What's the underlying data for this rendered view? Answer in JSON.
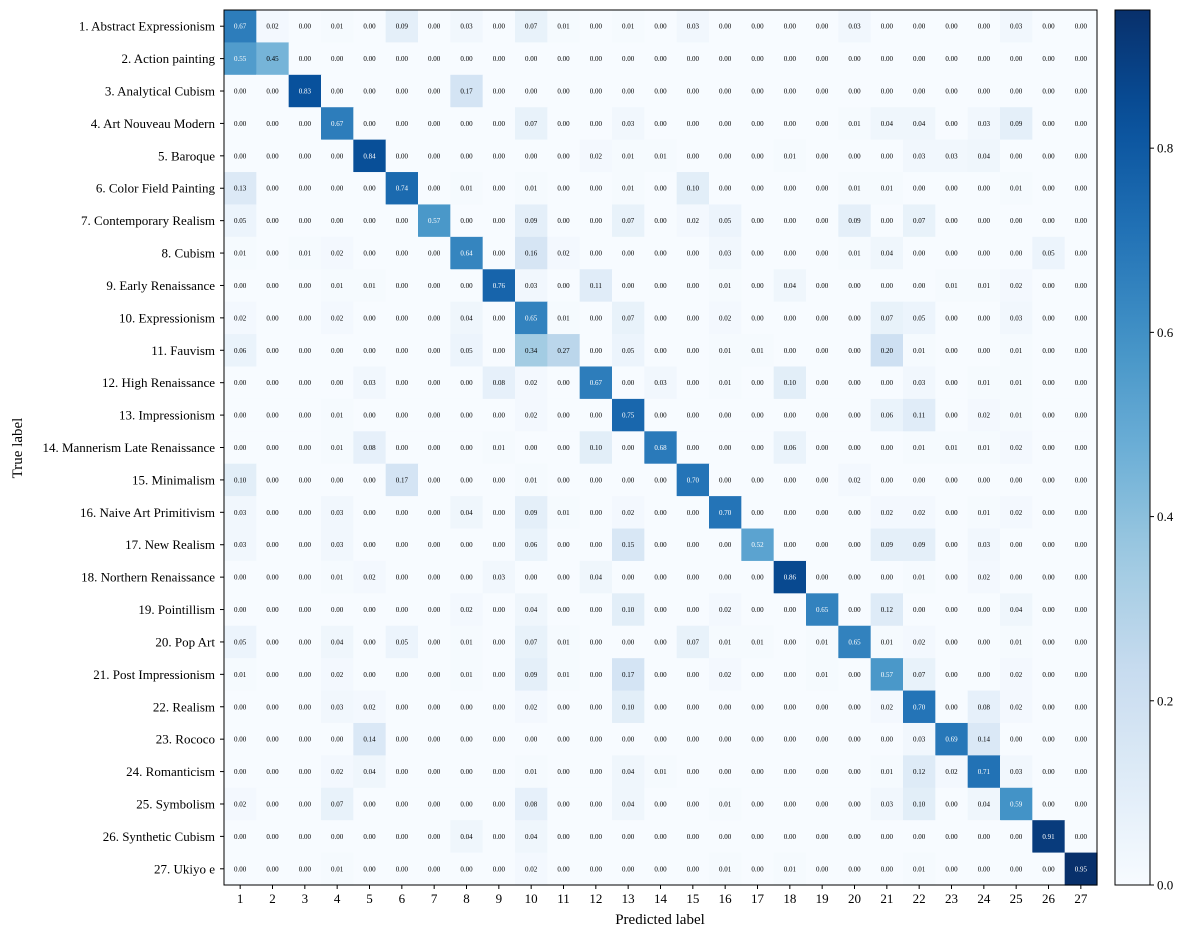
{
  "chart_data": {
    "type": "heatmap",
    "xlabel": "Predicted label",
    "ylabel": "True label",
    "x_tick_labels": [
      "1",
      "2",
      "3",
      "4",
      "5",
      "6",
      "7",
      "8",
      "9",
      "10",
      "11",
      "12",
      "13",
      "14",
      "15",
      "16",
      "17",
      "18",
      "19",
      "20",
      "21",
      "22",
      "23",
      "24",
      "25",
      "26",
      "27"
    ],
    "y_tick_labels": [
      "1. Abstract Expressionism",
      "2. Action painting",
      "3. Analytical Cubism",
      "4. Art Nouveau Modern",
      "5. Baroque",
      "6. Color Field Painting",
      "7. Contemporary Realism",
      "8. Cubism",
      "9. Early Renaissance",
      "10. Expressionism",
      "11. Fauvism",
      "12. High Renaissance",
      "13. Impressionism",
      "14. Mannerism Late Renaissance",
      "15. Minimalism",
      "16. Naive Art Primitivism",
      "17. New Realism",
      "18. Northern Renaissance",
      "19. Pointillism",
      "20. Pop Art",
      "21. Post Impressionism",
      "22. Realism",
      "23. Rococo",
      "24. Romanticism",
      "25. Symbolism",
      "26. Synthetic Cubism",
      "27. Ukiyo e"
    ],
    "values": [
      [
        0.67,
        0.02,
        0.0,
        0.01,
        0.0,
        0.09,
        0.0,
        0.03,
        0.0,
        0.07,
        0.01,
        0.0,
        0.01,
        0.0,
        0.03,
        0.0,
        0.0,
        0.0,
        0.0,
        0.03,
        0.0,
        0.0,
        0.0,
        0.0,
        0.03,
        0.0,
        0.0
      ],
      [
        0.55,
        0.45,
        0.0,
        0.0,
        0.0,
        0.0,
        0.0,
        0.0,
        0.0,
        0.0,
        0.0,
        0.0,
        0.0,
        0.0,
        0.0,
        0.0,
        0.0,
        0.0,
        0.0,
        0.0,
        0.0,
        0.0,
        0.0,
        0.0,
        0.0,
        0.0,
        0.0
      ],
      [
        0.0,
        0.0,
        0.83,
        0.0,
        0.0,
        0.0,
        0.0,
        0.17,
        0.0,
        0.0,
        0.0,
        0.0,
        0.0,
        0.0,
        0.0,
        0.0,
        0.0,
        0.0,
        0.0,
        0.0,
        0.0,
        0.0,
        0.0,
        0.0,
        0.0,
        0.0,
        0.0
      ],
      [
        0.0,
        0.0,
        0.0,
        0.67,
        0.0,
        0.0,
        0.0,
        0.0,
        0.0,
        0.07,
        0.0,
        0.0,
        0.03,
        0.0,
        0.0,
        0.0,
        0.0,
        0.0,
        0.0,
        0.01,
        0.04,
        0.04,
        0.0,
        0.03,
        0.09,
        0.0,
        0.0
      ],
      [
        0.0,
        0.0,
        0.0,
        0.0,
        0.84,
        0.0,
        0.0,
        0.0,
        0.0,
        0.0,
        0.0,
        0.02,
        0.01,
        0.01,
        0.0,
        0.0,
        0.0,
        0.01,
        0.0,
        0.0,
        0.0,
        0.03,
        0.03,
        0.04,
        0.0,
        0.0,
        0.0
      ],
      [
        0.13,
        0.0,
        0.0,
        0.0,
        0.0,
        0.74,
        0.0,
        0.01,
        0.0,
        0.01,
        0.0,
        0.0,
        0.01,
        0.0,
        0.1,
        0.0,
        0.0,
        0.0,
        0.0,
        0.01,
        0.01,
        0.0,
        0.0,
        0.0,
        0.01,
        0.0,
        0.0
      ],
      [
        0.05,
        0.0,
        0.0,
        0.0,
        0.0,
        0.0,
        0.57,
        0.0,
        0.0,
        0.09,
        0.0,
        0.0,
        0.07,
        0.0,
        0.02,
        0.05,
        0.0,
        0.0,
        0.0,
        0.09,
        0.0,
        0.07,
        0.0,
        0.0,
        0.0,
        0.0,
        0.0
      ],
      [
        0.01,
        0.0,
        0.01,
        0.02,
        0.0,
        0.0,
        0.0,
        0.64,
        0.0,
        0.16,
        0.02,
        0.0,
        0.0,
        0.0,
        0.0,
        0.03,
        0.0,
        0.0,
        0.0,
        0.01,
        0.04,
        0.0,
        0.0,
        0.0,
        0.0,
        0.05,
        0.0
      ],
      [
        0.0,
        0.0,
        0.0,
        0.01,
        0.01,
        0.0,
        0.0,
        0.0,
        0.76,
        0.03,
        0.0,
        0.11,
        0.0,
        0.0,
        0.0,
        0.01,
        0.0,
        0.04,
        0.0,
        0.0,
        0.0,
        0.0,
        0.01,
        0.01,
        0.02,
        0.0,
        0.0
      ],
      [
        0.02,
        0.0,
        0.0,
        0.02,
        0.0,
        0.0,
        0.0,
        0.04,
        0.0,
        0.65,
        0.01,
        0.0,
        0.07,
        0.0,
        0.0,
        0.02,
        0.0,
        0.0,
        0.0,
        0.0,
        0.07,
        0.05,
        0.0,
        0.0,
        0.03,
        0.0,
        0.0
      ],
      [
        0.06,
        0.0,
        0.0,
        0.0,
        0.0,
        0.0,
        0.0,
        0.05,
        0.0,
        0.34,
        0.27,
        0.0,
        0.05,
        0.0,
        0.0,
        0.01,
        0.01,
        0.0,
        0.0,
        0.0,
        0.2,
        0.01,
        0.0,
        0.0,
        0.01,
        0.0,
        0.0
      ],
      [
        0.0,
        0.0,
        0.0,
        0.0,
        0.03,
        0.0,
        0.0,
        0.0,
        0.08,
        0.02,
        0.0,
        0.67,
        0.0,
        0.03,
        0.0,
        0.01,
        0.0,
        0.1,
        0.0,
        0.0,
        0.0,
        0.03,
        0.0,
        0.01,
        0.01,
        0.0,
        0.0
      ],
      [
        0.0,
        0.0,
        0.0,
        0.01,
        0.0,
        0.0,
        0.0,
        0.0,
        0.0,
        0.02,
        0.0,
        0.0,
        0.75,
        0.0,
        0.0,
        0.0,
        0.0,
        0.0,
        0.0,
        0.0,
        0.06,
        0.11,
        0.0,
        0.02,
        0.01,
        0.0,
        0.0
      ],
      [
        0.0,
        0.0,
        0.0,
        0.01,
        0.08,
        0.0,
        0.0,
        0.0,
        0.01,
        0.0,
        0.0,
        0.1,
        0.0,
        0.68,
        0.0,
        0.0,
        0.0,
        0.06,
        0.0,
        0.0,
        0.0,
        0.01,
        0.01,
        0.01,
        0.02,
        0.0,
        0.0
      ],
      [
        0.1,
        0.0,
        0.0,
        0.0,
        0.0,
        0.17,
        0.0,
        0.0,
        0.0,
        0.01,
        0.0,
        0.0,
        0.0,
        0.0,
        0.7,
        0.0,
        0.0,
        0.0,
        0.0,
        0.02,
        0.0,
        0.0,
        0.0,
        0.0,
        0.0,
        0.0,
        0.0
      ],
      [
        0.03,
        0.0,
        0.0,
        0.03,
        0.0,
        0.0,
        0.0,
        0.04,
        0.0,
        0.09,
        0.01,
        0.0,
        0.02,
        0.0,
        0.0,
        0.7,
        0.0,
        0.0,
        0.0,
        0.0,
        0.02,
        0.02,
        0.0,
        0.01,
        0.02,
        0.0,
        0.0
      ],
      [
        0.03,
        0.0,
        0.0,
        0.03,
        0.0,
        0.0,
        0.0,
        0.0,
        0.0,
        0.06,
        0.0,
        0.0,
        0.15,
        0.0,
        0.0,
        0.0,
        0.52,
        0.0,
        0.0,
        0.0,
        0.09,
        0.09,
        0.0,
        0.03,
        0.0,
        0.0,
        0.0
      ],
      [
        0.0,
        0.0,
        0.0,
        0.01,
        0.02,
        0.0,
        0.0,
        0.0,
        0.03,
        0.0,
        0.0,
        0.04,
        0.0,
        0.0,
        0.0,
        0.0,
        0.0,
        0.86,
        0.0,
        0.0,
        0.0,
        0.01,
        0.0,
        0.02,
        0.0,
        0.0,
        0.0
      ],
      [
        0.0,
        0.0,
        0.0,
        0.0,
        0.0,
        0.0,
        0.0,
        0.02,
        0.0,
        0.04,
        0.0,
        0.0,
        0.1,
        0.0,
        0.0,
        0.02,
        0.0,
        0.0,
        0.65,
        0.0,
        0.12,
        0.0,
        0.0,
        0.0,
        0.04,
        0.0,
        0.0
      ],
      [
        0.05,
        0.0,
        0.0,
        0.04,
        0.0,
        0.05,
        0.0,
        0.01,
        0.0,
        0.07,
        0.01,
        0.0,
        0.0,
        0.0,
        0.07,
        0.01,
        0.01,
        0.0,
        0.01,
        0.65,
        0.01,
        0.02,
        0.0,
        0.0,
        0.01,
        0.0,
        0.0
      ],
      [
        0.01,
        0.0,
        0.0,
        0.02,
        0.0,
        0.0,
        0.0,
        0.01,
        0.0,
        0.09,
        0.01,
        0.0,
        0.17,
        0.0,
        0.0,
        0.02,
        0.0,
        0.0,
        0.01,
        0.0,
        0.57,
        0.07,
        0.0,
        0.0,
        0.02,
        0.0,
        0.0
      ],
      [
        0.0,
        0.0,
        0.0,
        0.03,
        0.02,
        0.0,
        0.0,
        0.0,
        0.0,
        0.02,
        0.0,
        0.0,
        0.1,
        0.0,
        0.0,
        0.0,
        0.0,
        0.0,
        0.0,
        0.0,
        0.02,
        0.7,
        0.0,
        0.08,
        0.02,
        0.0,
        0.0
      ],
      [
        0.0,
        0.0,
        0.0,
        0.0,
        0.14,
        0.0,
        0.0,
        0.0,
        0.0,
        0.0,
        0.0,
        0.0,
        0.0,
        0.0,
        0.0,
        0.0,
        0.0,
        0.0,
        0.0,
        0.0,
        0.0,
        0.03,
        0.69,
        0.14,
        0.0,
        0.0,
        0.0
      ],
      [
        0.0,
        0.0,
        0.0,
        0.02,
        0.04,
        0.0,
        0.0,
        0.0,
        0.0,
        0.01,
        0.0,
        0.0,
        0.04,
        0.01,
        0.0,
        0.0,
        0.0,
        0.0,
        0.0,
        0.0,
        0.01,
        0.12,
        0.02,
        0.71,
        0.03,
        0.0,
        0.0
      ],
      [
        0.02,
        0.0,
        0.0,
        0.07,
        0.0,
        0.0,
        0.0,
        0.0,
        0.0,
        0.08,
        0.0,
        0.0,
        0.04,
        0.0,
        0.0,
        0.01,
        0.0,
        0.0,
        0.0,
        0.0,
        0.03,
        0.1,
        0.0,
        0.04,
        0.59,
        0.0,
        0.0
      ],
      [
        0.0,
        0.0,
        0.0,
        0.0,
        0.0,
        0.0,
        0.0,
        0.04,
        0.0,
        0.04,
        0.0,
        0.0,
        0.0,
        0.0,
        0.0,
        0.0,
        0.0,
        0.0,
        0.0,
        0.0,
        0.0,
        0.0,
        0.0,
        0.0,
        0.0,
        0.91,
        0.0
      ],
      [
        0.0,
        0.0,
        0.0,
        0.01,
        0.0,
        0.0,
        0.0,
        0.0,
        0.0,
        0.02,
        0.0,
        0.0,
        0.0,
        0.0,
        0.0,
        0.01,
        0.0,
        0.01,
        0.0,
        0.0,
        0.0,
        0.01,
        0.0,
        0.0,
        0.0,
        0.0,
        0.95
      ]
    ],
    "colormap": "Blues",
    "colorbar_range": [
      0.0,
      0.95
    ],
    "colorbar_ticks": [
      "0.0",
      "0.2",
      "0.4",
      "0.6",
      "0.8"
    ],
    "colorbar_tick_values": [
      0.0,
      0.2,
      0.4,
      0.6,
      0.8
    ],
    "grid": false
  }
}
